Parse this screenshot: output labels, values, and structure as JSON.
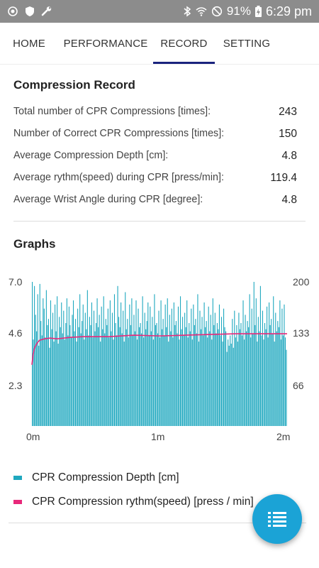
{
  "status_bar": {
    "battery": "91%",
    "time": "6:29 pm",
    "left_icons": [
      "brightness-icon",
      "shield-icon",
      "wrench-icon"
    ],
    "right_icons": [
      "bluetooth-icon",
      "wifi-icon",
      "do-not-disturb-icon",
      "battery-charging-icon"
    ]
  },
  "tabs": [
    {
      "label": "HOME",
      "active": false
    },
    {
      "label": "PERFORMANCE",
      "active": false
    },
    {
      "label": "RECORD",
      "active": true
    },
    {
      "label": "SETTING",
      "active": false
    }
  ],
  "record": {
    "title": "Compression Record",
    "rows": [
      {
        "label": "Total number of CPR Compressions [times]:",
        "value": "243"
      },
      {
        "label": "Number of Correct CPR Compressions [times]:",
        "value": "150"
      },
      {
        "label": "Average Compression Depth [cm]:",
        "value": "4.8"
      },
      {
        "label": "Average rythm(speed) during CPR [press/min]:",
        "value": "119.4"
      },
      {
        "label": "Average Wrist Angle during CPR [degree]:",
        "value": "4.8"
      }
    ]
  },
  "graphs": {
    "title": "Graphs"
  },
  "chart_data": {
    "type": "bar",
    "title": "",
    "left_axis": {
      "ticks": [
        "7.0",
        "4.6",
        "2.3"
      ],
      "ylim": [
        0,
        7.0
      ]
    },
    "right_axis": {
      "ticks": [
        "200",
        "133",
        "66"
      ],
      "ylim": [
        0,
        200
      ]
    },
    "x_axis": {
      "ticks": [
        "0m",
        "1m",
        "2m"
      ],
      "xlim_minutes": [
        0,
        2
      ]
    },
    "legend": [
      {
        "name": "CPR Compression Depth [cm]",
        "color": "#1fa8bf"
      },
      {
        "name": "CPR Compression rythm(speed) [press / min]",
        "color": "#e8287a"
      }
    ],
    "series": [
      {
        "name": "CPR Compression Depth [cm]",
        "type": "bar",
        "axis": "left",
        "color": "#1fa8bf",
        "values": [
          7.0,
          4.2,
          6.8,
          5.4,
          4.6,
          6.4,
          3.9,
          6.9,
          5.1,
          4.4,
          6.2,
          5.7,
          4.3,
          6.6,
          4.9,
          5.2,
          3.8,
          6.1,
          4.7,
          5.5,
          4.1,
          5.9,
          4.6,
          6.3,
          4.0,
          5.3,
          4.8,
          6.0,
          4.5,
          5.6,
          4.2,
          5.0,
          6.2,
          4.4,
          5.8,
          4.9,
          4.3,
          5.4,
          6.1,
          4.6,
          5.2,
          4.1,
          5.7,
          4.8,
          6.4,
          4.5,
          5.1,
          5.9,
          4.2,
          5.5,
          4.7,
          6.6,
          4.4,
          5.3,
          4.9,
          6.0,
          4.3,
          5.6,
          4.6,
          5.0,
          6.2,
          4.8,
          5.4,
          4.1,
          5.8,
          4.7,
          6.3,
          4.5,
          5.2,
          4.9,
          5.7,
          4.3,
          6.1,
          4.6,
          5.5,
          4.2,
          6.4,
          5.0,
          4.4,
          6.8,
          5.3,
          4.8,
          6.0,
          4.5,
          5.6,
          4.1,
          6.5,
          4.7,
          5.2,
          4.3,
          5.9,
          4.9,
          6.2,
          4.4,
          5.4,
          4.6,
          6.1,
          4.2,
          5.7,
          4.8,
          5.0,
          4.5,
          6.3,
          4.3,
          5.5,
          4.7,
          5.1,
          6.0,
          4.4,
          5.8,
          4.6,
          5.3,
          4.2,
          6.4,
          4.9,
          5.0,
          4.5,
          5.6,
          4.3,
          6.1,
          4.7,
          5.2,
          4.4,
          5.9,
          4.8,
          6.2,
          4.1,
          5.4,
          4.6,
          5.7,
          4.3,
          6.0,
          4.9,
          5.1,
          4.5,
          5.8,
          4.2,
          6.3,
          4.7,
          5.3,
          4.4,
          5.5,
          4.8,
          6.1,
          4.3,
          5.0,
          4.6,
          5.7,
          4.2,
          5.9,
          4.9,
          5.2,
          4.5,
          6.4,
          4.1,
          5.6,
          4.7,
          5.3,
          4.4,
          6.0,
          4.8,
          5.1,
          4.3,
          5.8,
          4.6,
          5.4,
          4.2,
          6.2,
          4.9,
          5.5,
          4.5,
          5.0,
          4.7,
          5.9,
          4.4,
          5.3,
          4.1,
          5.7,
          4.8,
          4.6,
          3.6,
          4.2,
          3.9,
          4.4,
          4.0,
          5.2,
          3.8,
          5.6,
          4.3,
          4.9,
          4.1,
          5.5,
          4.7,
          5.0,
          4.4,
          6.1,
          4.2,
          5.4,
          4.6,
          5.1,
          4.8,
          6.4,
          4.3,
          5.7,
          4.5,
          7.0,
          4.9,
          6.2,
          4.1,
          5.3,
          4.6,
          6.8,
          4.4,
          5.6,
          4.2,
          5.0,
          4.7,
          5.8,
          4.3,
          6.0,
          4.9,
          5.2,
          4.5,
          6.3,
          4.1,
          5.5,
          4.6,
          5.1,
          4.8,
          6.1,
          4.2,
          5.7,
          4.4,
          5.9,
          4.3,
          3.7
        ]
      },
      {
        "name": "CPR Compression rythm(speed) [press / min]",
        "type": "line",
        "axis": "right",
        "color": "#e8287a",
        "x_minutes": [
          0.0,
          0.01,
          0.02,
          0.04,
          0.06,
          0.1,
          0.14,
          0.2,
          0.3,
          0.4,
          0.6,
          0.8,
          1.0,
          1.2,
          1.4,
          1.6,
          1.8,
          2.0
        ],
        "values": [
          85,
          100,
          108,
          115,
          119,
          121,
          122,
          121,
          123,
          124,
          124,
          126,
          125,
          126,
          127,
          128,
          128,
          128
        ]
      }
    ]
  }
}
